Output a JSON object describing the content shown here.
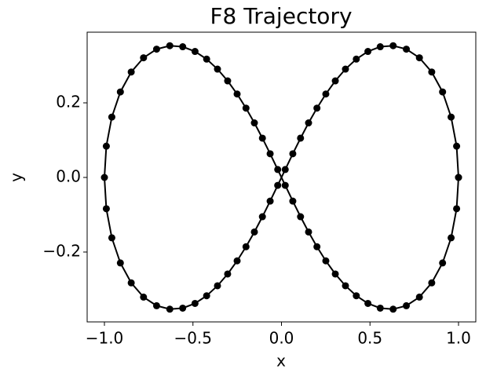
{
  "chart_data": {
    "type": "line",
    "title": "F8 Trajectory",
    "xlabel": "x",
    "ylabel": "y",
    "color": "#000000",
    "markers": true,
    "x": [
      1.0,
      0.9893,
      0.9582,
      0.91,
      0.8487,
      0.7791,
      0.7053,
      0.6308,
      0.5579,
      0.4883,
      0.4227,
      0.3614,
      0.304,
      0.2505,
      0.2004,
      0.153,
      0.1077,
      0.064,
      0.0212,
      -0.0212,
      -0.064,
      -0.1077,
      -0.153,
      -0.2004,
      -0.2505,
      -0.304,
      -0.3614,
      -0.4227,
      -0.4883,
      -0.5579,
      -0.6308,
      -0.7053,
      -0.7791,
      -0.8487,
      -0.91,
      -0.9582,
      -0.9893,
      -1.0,
      -0.9893,
      -0.9582,
      -0.91,
      -0.8487,
      -0.7791,
      -0.7053,
      -0.6308,
      -0.5579,
      -0.4883,
      -0.4227,
      -0.3614,
      -0.304,
      -0.2505,
      -0.2004,
      -0.153,
      -0.1077,
      -0.064,
      -0.0212,
      0.0212,
      0.064,
      0.1077,
      0.153,
      0.2004,
      0.2505,
      0.304,
      0.3614,
      0.4227,
      0.4883,
      0.5579,
      0.6308,
      0.7053,
      0.7791,
      0.8487,
      0.91,
      0.9582,
      0.9893,
      1.0
    ],
    "y": [
      0.0,
      0.0839,
      0.1619,
      0.2293,
      0.2827,
      0.3209,
      0.344,
      0.3532,
      0.3505,
      0.3378,
      0.3173,
      0.2905,
      0.2589,
      0.2237,
      0.1859,
      0.1463,
      0.1053,
      0.0635,
      0.0212,
      -0.0212,
      -0.0635,
      -0.1053,
      -0.1463,
      -0.1859,
      -0.2237,
      -0.2589,
      -0.2905,
      -0.3173,
      -0.3378,
      -0.3505,
      -0.3532,
      -0.344,
      -0.3209,
      -0.2827,
      -0.2293,
      -0.1619,
      -0.0839,
      0.0,
      0.0839,
      0.1619,
      0.2293,
      0.2827,
      0.3209,
      0.344,
      0.3532,
      0.3505,
      0.3378,
      0.3173,
      0.2905,
      0.2589,
      0.2237,
      0.1859,
      0.1463,
      0.1053,
      0.0635,
      0.0212,
      -0.0212,
      -0.0635,
      -0.1053,
      -0.1463,
      -0.1859,
      -0.2237,
      -0.2589,
      -0.2905,
      -0.3173,
      -0.3378,
      -0.3505,
      -0.3532,
      -0.344,
      -0.3209,
      -0.2827,
      -0.2293,
      -0.1619,
      -0.0839,
      0.0
    ],
    "xlim": [
      -1.0976,
      1.0976
    ],
    "ylim": [
      -0.3874,
      0.3895
    ],
    "xticks": [
      {
        "value": -1.0,
        "label": "−1.0"
      },
      {
        "value": -0.5,
        "label": "−0.5"
      },
      {
        "value": 0.0,
        "label": "0.0"
      },
      {
        "value": 0.5,
        "label": "0.5"
      },
      {
        "value": 1.0,
        "label": "1.0"
      }
    ],
    "yticks": [
      {
        "value": -0.2,
        "label": "−0.2"
      },
      {
        "value": 0.0,
        "label": "0.0"
      },
      {
        "value": 0.2,
        "label": "0.2"
      }
    ]
  }
}
